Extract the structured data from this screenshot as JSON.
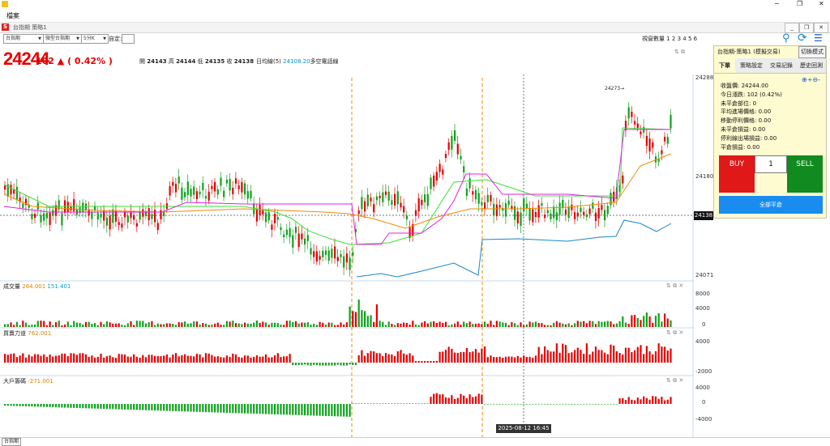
{
  "window": {
    "menu_label": "檔案",
    "doc_title": "台指期 策略1",
    "controls": [
      "−",
      "❐",
      "✕"
    ]
  },
  "toolbar": {
    "product": "台指期",
    "contract": "微型台指期",
    "period": "5分K",
    "custom_label": "自定:",
    "custom_value": "",
    "view_count_label": "視窗數量 1 2 3 4 5 6",
    "icons": [
      "signal-icon",
      "refresh-icon",
      "users-icon"
    ]
  },
  "quote": {
    "price": "24244",
    "change": "102 ▲ ( 0.42% )",
    "open_label": "開",
    "open": "24143",
    "high_label": "高",
    "high": "24144",
    "low_label": "低",
    "low": "24135",
    "close_label": "收",
    "close": "24138",
    "ma_label": "日均線(5)",
    "ma_value": "24108.20",
    "ma_suffix": "多空電話線"
  },
  "price_axis": {
    "top": "24288",
    "mid": "24180",
    "bottom": "24071",
    "current": "24138",
    "peak_label": "24273→"
  },
  "volume_panel": {
    "label": "成交量",
    "v1": "264.001",
    "v2": "151.401",
    "ticks": [
      "8000",
      "4000",
      "0"
    ]
  },
  "buysell_panel": {
    "label": "買賣力道",
    "v1": "762.001",
    "ticks": [
      "4000",
      "-2000"
    ]
  },
  "bigplayer_panel": {
    "label": "大戶籌碼",
    "v1": "-271.001",
    "ticks": [
      "4000",
      "0",
      "-4000"
    ]
  },
  "crosshair_date": "2025-08-12  16:45",
  "status_tab": "台指期",
  "panel": {
    "title": "台指期-策略1 (模擬交易)",
    "mode_button": "切換模式",
    "tabs": [
      "下單",
      "策略設定",
      "交易記錄",
      "歷史回測"
    ],
    "active_tab": 0,
    "info": [
      "收盤價: 24244.00",
      "今日漲跌: 102 (0.42%)",
      "未平倉部位: 0",
      "平均進場價格: 0.00",
      "移動停利價格: 0.00",
      "未平倉損益: 0.00",
      "停利線出場損益: 0.00",
      "平倉損益: 0.00"
    ],
    "buy_label": "BUY",
    "qty": "1",
    "sell_label": "SELL",
    "flat_label": "全部平倉"
  },
  "colors": {
    "up": "#e60000",
    "down": "#11a11f",
    "ma_orange": "#f08a00",
    "line_green": "#38e038",
    "line_magenta": "#e020e0",
    "line_blue": "#1a86c8",
    "accent_blue": "#1a8cf0"
  }
}
